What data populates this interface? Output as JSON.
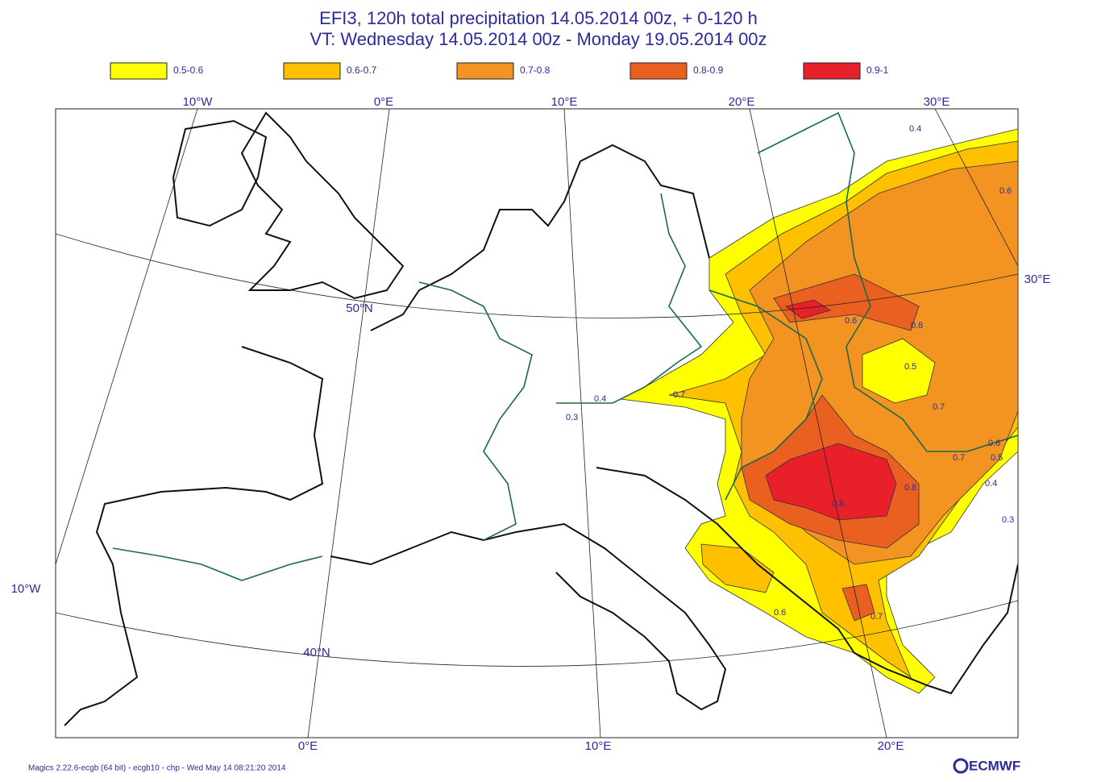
{
  "title": [
    "EFI3, 120h total precipitation 14.05.2014 00z, +  0-120 h",
    "VT: Wednesday 14.05.2014 00z - Monday    19.05.2014 00z"
  ],
  "legend": [
    {
      "label": "0.5-0.6",
      "color": "#ffff00"
    },
    {
      "label": "0.6-0.7",
      "color": "#ffc000"
    },
    {
      "label": "0.7-0.8",
      "color": "#f39422"
    },
    {
      "label": "0.8-0.9",
      "color": "#ea6020"
    },
    {
      "label": "0.9-1",
      "color": "#e8202a"
    }
  ],
  "graticule_labels": [
    "10°W",
    "0°E",
    "10°E",
    "20°E",
    "30°E",
    "30°E",
    "10°W",
    "50°N",
    "40°N",
    "0°E",
    "10°E",
    "20°E"
  ],
  "contour_labels": [
    "0.4",
    "0.6",
    "0.6",
    "0.8",
    "0.5",
    "0.7",
    "0.7",
    "0.4",
    "0.3",
    "0.7",
    "0.6",
    "0.5",
    "0.4",
    "0.3",
    "0.8",
    "0.8",
    "0.6",
    "0.7"
  ],
  "footer": "Magics 2.22.6-ecgb (64 bit) - ecgb10 - chp - Wed May 14 08:21:20 2014",
  "logo": "ECMWF"
}
